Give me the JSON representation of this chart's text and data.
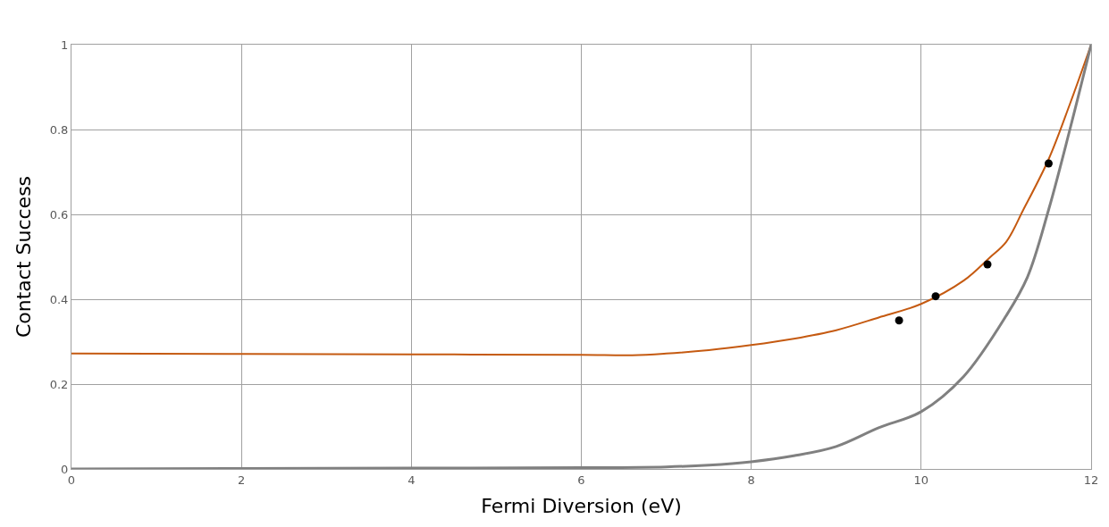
{
  "chart_data": {
    "type": "line",
    "xlabel": "Fermi Diversion (eV)",
    "ylabel": "Contact Success",
    "xlim": [
      0,
      12
    ],
    "xticks": [
      0,
      2,
      4,
      6,
      8,
      10,
      12
    ],
    "ylim": [
      0,
      1
    ],
    "yticks": [
      0,
      0.2,
      0.4,
      0.6,
      0.8,
      1
    ],
    "grid": true,
    "marker": "none",
    "line_style": "solid",
    "series": [
      {
        "color": "#c55a11",
        "x": [
          0,
          2,
          4,
          6,
          6.6,
          7,
          7.5,
          8,
          8.5,
          9,
          9.5,
          10,
          10.5,
          10.8,
          11,
          11.2,
          11.5,
          11.75,
          12
        ],
        "values": [
          0.272,
          0.271,
          0.27,
          0.269,
          0.268,
          0.272,
          0.28,
          0.292,
          0.307,
          0.327,
          0.357,
          0.389,
          0.444,
          0.497,
          0.535,
          0.61,
          0.73,
          0.86,
          1
        ]
      },
      {
        "color": "#808080",
        "x": [
          0,
          2,
          4,
          6,
          7,
          7.5,
          8,
          8.5,
          9,
          9.5,
          10,
          10.5,
          11,
          11.25,
          11.5,
          11.75,
          12
        ],
        "values": [
          0,
          0.001,
          0.002,
          0.003,
          0.005,
          0.009,
          0.017,
          0.031,
          0.053,
          0.097,
          0.135,
          0.218,
          0.361,
          0.452,
          0.611,
          0.8,
          1
        ]
      },
      {
        "type": "scatter",
        "marker": "circle",
        "color": "#000000",
        "x": [
          9.74,
          10.17,
          10.78,
          11.5
        ],
        "values": [
          0.35,
          0.407,
          0.482,
          0.72
        ]
      }
    ]
  }
}
